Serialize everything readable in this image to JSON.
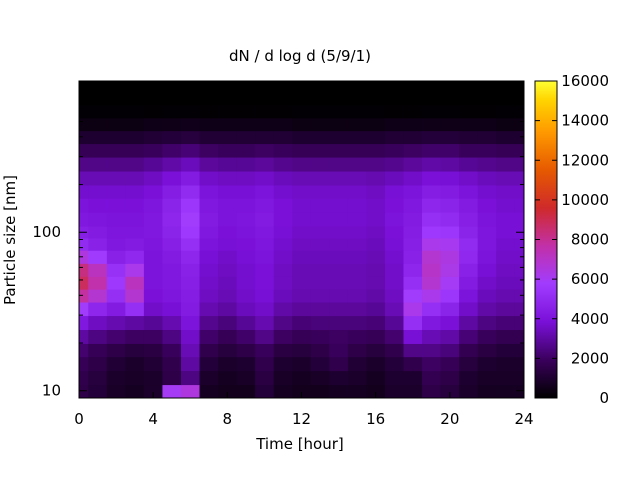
{
  "chart_data": {
    "type": "heatmap",
    "title": "dN / d log d (5/9/1)",
    "xlabel": "Time [hour]",
    "ylabel": "Particle size [nm]",
    "xlim": [
      0,
      24
    ],
    "xticks": [
      0,
      4,
      8,
      12,
      16,
      20,
      24
    ],
    "ylim": [
      9,
      900
    ],
    "yscale": "log",
    "yticks": [
      10,
      100
    ],
    "colorbar": {
      "min": 0,
      "max": 16000,
      "ticks": [
        0,
        2000,
        4000,
        6000,
        8000,
        10000,
        12000,
        14000,
        16000
      ],
      "colormap": [
        "#000000",
        "#3a005c",
        "#7a10d8",
        "#a13cff",
        "#c230a8",
        "#cf2a2a",
        "#e65a00",
        "#ff9a00",
        "#ffd400",
        "#ffff33"
      ]
    },
    "y_bins_nm": [
      10,
      12,
      15,
      18,
      22,
      27,
      33,
      40,
      48,
      58,
      70,
      85,
      100,
      120,
      150,
      180,
      220,
      270,
      330,
      400,
      480,
      580,
      700,
      850
    ],
    "time_bins_hour": [
      0,
      1,
      2,
      3,
      4,
      5,
      6,
      7,
      8,
      9,
      10,
      11,
      12,
      13,
      14,
      15,
      16,
      17,
      18,
      19,
      20,
      21,
      22,
      23,
      24
    ],
    "values": [
      [
        1500,
        1200,
        800,
        700,
        900,
        6000,
        6500,
        700,
        600,
        600,
        1200,
        700,
        600,
        600,
        700,
        700,
        600,
        900,
        900,
        1500,
        1300,
        900,
        700,
        700,
        700
      ],
      [
        1600,
        1300,
        900,
        800,
        900,
        1500,
        2500,
        900,
        700,
        800,
        1400,
        800,
        700,
        800,
        1000,
        900,
        700,
        1000,
        1000,
        1700,
        1500,
        1000,
        800,
        800,
        800
      ],
      [
        1800,
        1500,
        1100,
        900,
        1100,
        1600,
        3000,
        1200,
        900,
        1000,
        1600,
        1000,
        900,
        1200,
        1600,
        1100,
        900,
        1200,
        1600,
        2000,
        1800,
        1300,
        1000,
        900,
        900
      ],
      [
        2200,
        1800,
        1500,
        1300,
        1400,
        1900,
        3300,
        1600,
        1300,
        1500,
        1900,
        1400,
        1300,
        1500,
        1900,
        1500,
        1300,
        1600,
        2600,
        2600,
        2400,
        1700,
        1400,
        1200,
        1200
      ],
      [
        3000,
        2500,
        2200,
        2000,
        2000,
        2500,
        3600,
        2100,
        1800,
        2100,
        2600,
        2000,
        1800,
        1900,
        2000,
        1900,
        1800,
        2200,
        3800,
        3300,
        3100,
        2300,
        1900,
        1700,
        1700
      ],
      [
        4200,
        3500,
        3200,
        3000,
        2800,
        3200,
        4000,
        2700,
        2400,
        2800,
        3200,
        2600,
        2300,
        2400,
        2400,
        2400,
        2300,
        2800,
        5200,
        4200,
        3900,
        3000,
        2500,
        2300,
        2300
      ],
      [
        5800,
        4800,
        4300,
        5200,
        3600,
        3800,
        4300,
        3200,
        3000,
        3400,
        3600,
        3100,
        2900,
        2900,
        2900,
        2900,
        2800,
        3300,
        6200,
        5200,
        4700,
        3600,
        3100,
        2900,
        2900
      ],
      [
        7800,
        6800,
        5200,
        6800,
        3900,
        4100,
        4400,
        3500,
        3300,
        3600,
        3800,
        3400,
        3200,
        3200,
        3200,
        3200,
        3100,
        3500,
        5800,
        6200,
        5500,
        4000,
        3400,
        3200,
        3200
      ],
      [
        8800,
        7600,
        5600,
        7200,
        4000,
        4200,
        4500,
        3600,
        3400,
        3700,
        3900,
        3500,
        3300,
        3300,
        3300,
        3300,
        3200,
        3600,
        5200,
        6800,
        6000,
        4300,
        3600,
        3400,
        3400
      ],
      [
        8300,
        7200,
        5300,
        6200,
        4000,
        4200,
        4600,
        3700,
        3500,
        3700,
        3900,
        3500,
        3300,
        3300,
        3300,
        3300,
        3200,
        3600,
        4800,
        7000,
        6300,
        4600,
        3800,
        3500,
        3500
      ],
      [
        6500,
        5700,
        4600,
        4900,
        4000,
        4300,
        4800,
        3800,
        3600,
        3800,
        4000,
        3600,
        3400,
        3400,
        3400,
        3400,
        3300,
        3700,
        4600,
        6800,
        6400,
        4900,
        4000,
        3600,
        3600
      ],
      [
        5000,
        4600,
        4200,
        4300,
        4100,
        4500,
        5200,
        4000,
        3800,
        3900,
        4100,
        3700,
        3500,
        3500,
        3500,
        3500,
        3400,
        3800,
        4500,
        6200,
        6100,
        5000,
        4100,
        3700,
        3700
      ],
      [
        4500,
        4300,
        4100,
        4100,
        4200,
        4700,
        5600,
        4200,
        3900,
        4000,
        4200,
        3800,
        3600,
        3600,
        3600,
        3600,
        3500,
        3900,
        4400,
        5600,
        5500,
        4700,
        4100,
        3800,
        3800
      ],
      [
        4200,
        4100,
        4000,
        4000,
        4200,
        4800,
        5800,
        4300,
        4000,
        4100,
        4300,
        3900,
        3700,
        3700,
        3700,
        3700,
        3600,
        4000,
        4300,
        5200,
        5000,
        4500,
        4000,
        3800,
        3800
      ],
      [
        4000,
        3900,
        3900,
        3900,
        4100,
        4700,
        5500,
        4200,
        4000,
        4000,
        4200,
        3900,
        3700,
        3700,
        3700,
        3700,
        3600,
        3900,
        4200,
        4800,
        4700,
        4300,
        3900,
        3700,
        3700
      ],
      [
        3700,
        3700,
        3700,
        3700,
        3900,
        4400,
        5000,
        4000,
        3800,
        3800,
        4000,
        3700,
        3600,
        3600,
        3600,
        3600,
        3500,
        3800,
        4000,
        4400,
        4300,
        4000,
        3700,
        3600,
        3600
      ],
      [
        3300,
        3300,
        3300,
        3300,
        3500,
        3900,
        4300,
        3600,
        3500,
        3500,
        3600,
        3400,
        3300,
        3300,
        3300,
        3300,
        3200,
        3400,
        3600,
        3900,
        3800,
        3600,
        3400,
        3300,
        3300
      ],
      [
        2600,
        2600,
        2600,
        2600,
        2800,
        3100,
        3400,
        2900,
        2800,
        2800,
        2900,
        2700,
        2600,
        2600,
        2600,
        2600,
        2600,
        2700,
        2900,
        3100,
        3000,
        2800,
        2700,
        2600,
        2600
      ],
      [
        1800,
        1800,
        1800,
        1800,
        1900,
        2100,
        2300,
        2000,
        1900,
        1900,
        2000,
        1900,
        1800,
        1800,
        1800,
        1800,
        1800,
        1900,
        2000,
        2100,
        2100,
        1900,
        1900,
        1800,
        1800
      ],
      [
        1000,
        1000,
        1000,
        1000,
        1100,
        1200,
        1300,
        1100,
        1100,
        1100,
        1100,
        1100,
        1000,
        1000,
        1000,
        1000,
        1000,
        1100,
        1100,
        1200,
        1200,
        1100,
        1100,
        1000,
        1000
      ],
      [
        400,
        400,
        400,
        400,
        450,
        500,
        550,
        450,
        450,
        450,
        450,
        450,
        400,
        400,
        400,
        400,
        400,
        450,
        450,
        500,
        500,
        450,
        450,
        400,
        400
      ],
      [
        80,
        80,
        80,
        80,
        90,
        100,
        100,
        90,
        90,
        90,
        90,
        90,
        80,
        80,
        80,
        80,
        80,
        90,
        90,
        100,
        100,
        90,
        90,
        80,
        80
      ],
      [
        10,
        10,
        10,
        10,
        10,
        10,
        10,
        10,
        10,
        10,
        10,
        10,
        10,
        10,
        10,
        10,
        10,
        10,
        10,
        10,
        10,
        10,
        10,
        10,
        10
      ],
      [
        0,
        0,
        0,
        0,
        0,
        0,
        0,
        0,
        0,
        0,
        0,
        0,
        0,
        0,
        0,
        0,
        0,
        0,
        0,
        0,
        0,
        0,
        0,
        0,
        0
      ]
    ],
    "grid": false,
    "legend": "colorbar-right"
  }
}
